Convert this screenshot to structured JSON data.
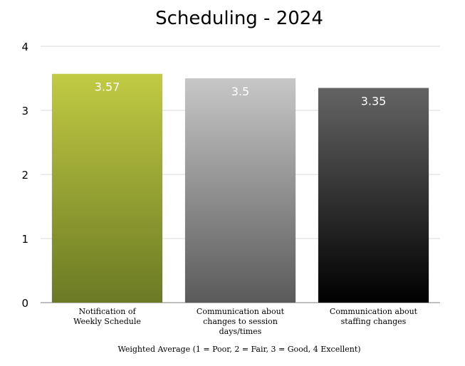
{
  "chart_data": {
    "type": "bar",
    "title": "Scheduling - 2024",
    "xlabel": "Weighted Average (1 = Poor, 2 = Fair, 3 = Good, 4 Excellent)",
    "ylabel": "",
    "ylim": [
      0,
      4
    ],
    "yticks": [
      "0",
      "1",
      "2",
      "3",
      "4"
    ],
    "grid": true,
    "categories": [
      [
        "Notification of",
        "Weekly Schedule"
      ],
      [
        "Communication about",
        "changes to session",
        "days/times"
      ],
      [
        "Communication about",
        "staffing changes"
      ]
    ],
    "values": [
      3.57,
      3.5,
      3.35
    ],
    "data_labels": [
      "3.57",
      "3.5",
      "3.35"
    ],
    "bar_gradients": [
      {
        "top": "#c1cb43",
        "bottom": "#6b7a24"
      },
      {
        "top": "#c7c7c7",
        "bottom": "#5a5a5a"
      },
      {
        "top": "#646464",
        "bottom": "#000000"
      }
    ],
    "gridline_color": "#d9d9d9"
  }
}
